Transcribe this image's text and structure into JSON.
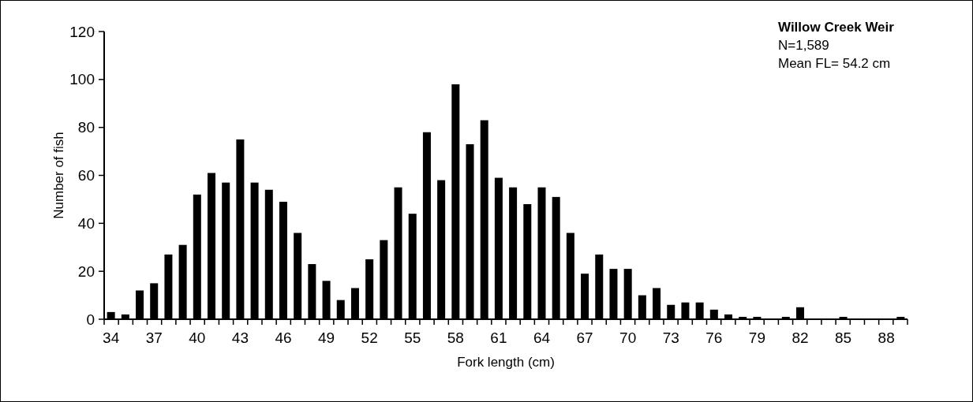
{
  "chart_data": {
    "type": "bar",
    "title": "Willow Creek Weir",
    "annotations": [
      "N=1,589",
      "Mean FL= 54.2 cm"
    ],
    "xlabel": "Fork length (cm)",
    "ylabel": "Number of fish",
    "categories": [
      "34",
      null,
      null,
      "37",
      null,
      null,
      "40",
      null,
      null,
      "43",
      null,
      null,
      "46",
      null,
      null,
      "49",
      null,
      null,
      "52",
      null,
      null,
      "55",
      null,
      null,
      "58",
      null,
      null,
      "61",
      null,
      null,
      "64",
      null,
      null,
      "67",
      null,
      null,
      "70",
      null,
      null,
      "73",
      null,
      null,
      "76",
      null,
      null,
      "79",
      null,
      null,
      "82",
      null,
      null,
      "85",
      null,
      null,
      "88",
      null
    ],
    "values": [
      3,
      2,
      12,
      15,
      27,
      31,
      52,
      61,
      57,
      75,
      57,
      54,
      49,
      36,
      23,
      16,
      8,
      13,
      25,
      33,
      55,
      44,
      78,
      58,
      98,
      73,
      83,
      59,
      55,
      48,
      55,
      51,
      36,
      19,
      27,
      21,
      21,
      10,
      13,
      6,
      7,
      7,
      4,
      2,
      1,
      1,
      0,
      1,
      5,
      0,
      0,
      1,
      0,
      0,
      0,
      1
    ],
    "color": "#000000",
    "ylim": [
      0,
      120
    ],
    "yticks": [
      0,
      20,
      40,
      60,
      80,
      100,
      120
    ],
    "grid": false
  }
}
